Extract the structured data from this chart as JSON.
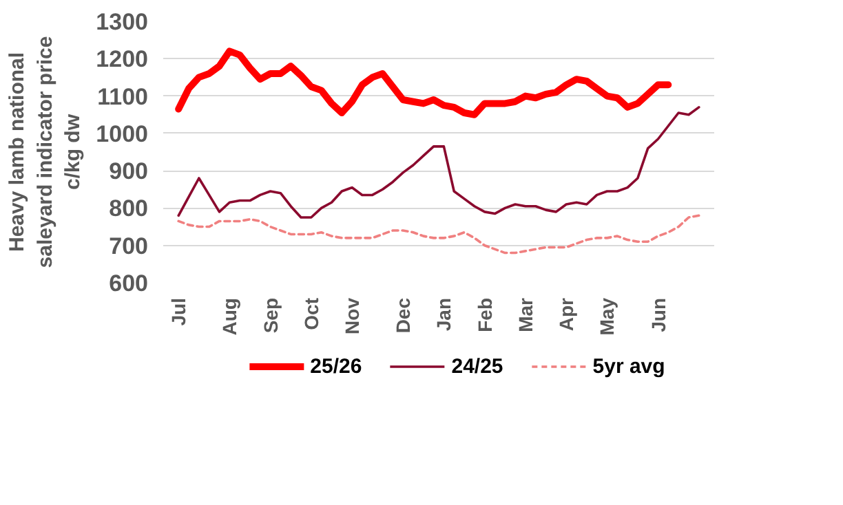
{
  "chart_data": {
    "type": "line",
    "ylabel": "Heavy lamb national\nsaleyard indicator price\nc/kg dw",
    "categories": [
      "Jul",
      null,
      null,
      null,
      null,
      "Aug",
      null,
      null,
      null,
      "Sep",
      null,
      null,
      null,
      "Oct",
      null,
      null,
      null,
      "Nov",
      null,
      null,
      null,
      null,
      "Dec",
      null,
      null,
      null,
      "Jan",
      null,
      null,
      null,
      "Feb",
      null,
      null,
      null,
      "Mar",
      null,
      null,
      null,
      "Apr",
      null,
      null,
      null,
      "May",
      null,
      null,
      null,
      null,
      "Jun",
      null,
      null,
      null,
      null
    ],
    "ylim": [
      600,
      1300
    ],
    "yticks": [
      600,
      700,
      800,
      900,
      1000,
      1100,
      1200,
      1300
    ],
    "grid": "y",
    "legend": "bottom",
    "marker": "none",
    "series": [
      {
        "name": "25/26",
        "color": "#ff0000",
        "line_style": "solid",
        "values": [
          1065,
          1120,
          1150,
          1160,
          1180,
          1220,
          1210,
          1175,
          1145,
          1160,
          1160,
          1180,
          1155,
          1125,
          1115,
          1080,
          1055,
          1085,
          1130,
          1150,
          1160,
          1125,
          1090,
          1085,
          1080,
          1090,
          1075,
          1070,
          1055,
          1050,
          1080,
          1080,
          1080,
          1085,
          1100,
          1095,
          1105,
          1110,
          1130,
          1145,
          1140,
          1120,
          1100,
          1095,
          1070,
          1080,
          1105,
          1130,
          1130,
          null,
          null,
          null
        ]
      },
      {
        "name": "24/25",
        "color": "#8b0a2e",
        "line_style": "solid",
        "values": [
          780,
          830,
          880,
          835,
          790,
          815,
          820,
          820,
          835,
          845,
          840,
          805,
          775,
          775,
          800,
          815,
          845,
          855,
          835,
          835,
          850,
          870,
          895,
          915,
          940,
          965,
          965,
          845,
          825,
          805,
          790,
          785,
          800,
          810,
          805,
          805,
          795,
          790,
          810,
          815,
          810,
          835,
          845,
          845,
          855,
          880,
          960,
          985,
          1020,
          1055,
          1050,
          1070
        ]
      },
      {
        "name": "5yr avg",
        "color": "#f08080",
        "line_style": "dashed",
        "values": [
          765,
          755,
          750,
          750,
          765,
          765,
          765,
          770,
          765,
          750,
          740,
          730,
          730,
          730,
          735,
          725,
          720,
          720,
          720,
          720,
          730,
          740,
          740,
          735,
          725,
          720,
          720,
          725,
          735,
          720,
          700,
          690,
          680,
          680,
          685,
          690,
          695,
          695,
          695,
          705,
          715,
          720,
          720,
          725,
          715,
          710,
          710,
          725,
          735,
          750,
          775,
          780
        ]
      }
    ]
  }
}
